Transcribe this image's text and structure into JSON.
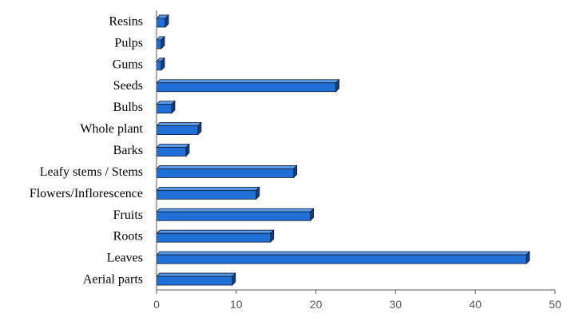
{
  "chart_data": {
    "type": "bar",
    "orientation": "horizontal",
    "style": "3d",
    "categories": [
      "Aerial parts",
      "Leaves",
      "Roots",
      "Fruits",
      "Flowers/Inflorescence",
      "Leafy stems / Stems",
      "Barks",
      "Whole plant",
      "Bulbs",
      "Seeds",
      "Gums",
      "Pulps",
      "Resins"
    ],
    "values": [
      9.5,
      46.4,
      14.3,
      19.3,
      12.5,
      17.2,
      3.7,
      5.2,
      1.9,
      22.5,
      0.6,
      0.6,
      1.1
    ],
    "xlim": [
      0,
      50
    ],
    "xticks": [
      "0",
      "10",
      "20",
      "30",
      "40",
      "50"
    ],
    "title": "",
    "xlabel": "",
    "ylabel": "",
    "grid": false,
    "legend": "none",
    "colors": {
      "bar_front": "#1f6fd6",
      "bar_top": "#5c9ae6",
      "bar_side": "#123f7d",
      "bar_edge": "#0d1a33",
      "axis": "#595959"
    }
  }
}
